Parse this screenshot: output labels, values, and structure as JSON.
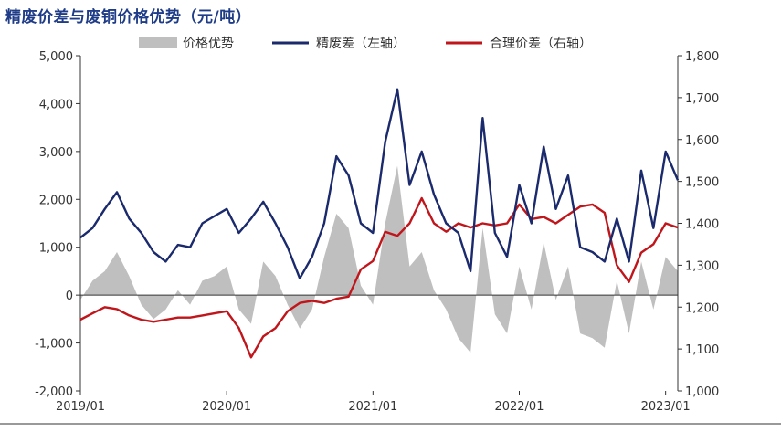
{
  "title": "精废价差与废铜价格优势（元/吨）",
  "chart_data": {
    "type": "line",
    "x_ticks": [
      "2019/01",
      "2020/01",
      "2021/01",
      "2022/01",
      "2023/01"
    ],
    "left_axis": {
      "ticks": [
        "5,000",
        "4,000",
        "3,000",
        "2,000",
        "1,000",
        "0",
        "-1,000",
        "-2,000"
      ],
      "min": -2000,
      "max": 5000
    },
    "right_axis": {
      "ticks": [
        "1,800",
        "1,700",
        "1,600",
        "1,500",
        "1,400",
        "1,300",
        "1,200",
        "1,100",
        "1,000"
      ],
      "min": 1000,
      "max": 1800
    },
    "legend": [
      "价格优势",
      "精废差（左轴）",
      "合理价差（右轴）"
    ],
    "colors": {
      "advantage": "#bfbfbf",
      "spread": "#1a2a6c",
      "reasonable": "#c0161b"
    },
    "series": [
      {
        "name": "精废差（左轴）",
        "axis": "left",
        "points": [
          [
            "2019/01",
            1200
          ],
          [
            "2019/02",
            1400
          ],
          [
            "2019/03",
            1800
          ],
          [
            "2019/04",
            2150
          ],
          [
            "2019/05",
            1600
          ],
          [
            "2019/06",
            1300
          ],
          [
            "2019/07",
            900
          ],
          [
            "2019/08",
            700
          ],
          [
            "2019/09",
            1050
          ],
          [
            "2019/10",
            1000
          ],
          [
            "2019/11",
            1500
          ],
          [
            "2019/12",
            1650
          ],
          [
            "2020/01",
            1800
          ],
          [
            "2020/02",
            1300
          ],
          [
            "2020/03",
            1600
          ],
          [
            "2020/04",
            1950
          ],
          [
            "2020/05",
            1500
          ],
          [
            "2020/06",
            1000
          ],
          [
            "2020/07",
            350
          ],
          [
            "2020/08",
            800
          ],
          [
            "2020/09",
            1500
          ],
          [
            "2020/10",
            2900
          ],
          [
            "2020/11",
            2500
          ],
          [
            "2020/12",
            1500
          ],
          [
            "2021/01",
            1300
          ],
          [
            "2021/02",
            3200
          ],
          [
            "2021/03",
            4300
          ],
          [
            "2021/04",
            2300
          ],
          [
            "2021/05",
            3000
          ],
          [
            "2021/06",
            2100
          ],
          [
            "2021/07",
            1500
          ],
          [
            "2021/08",
            1300
          ],
          [
            "2021/09",
            500
          ],
          [
            "2021/10",
            3700
          ],
          [
            "2021/11",
            1300
          ],
          [
            "2021/12",
            800
          ],
          [
            "2022/01",
            2300
          ],
          [
            "2022/02",
            1500
          ],
          [
            "2022/03",
            3100
          ],
          [
            "2022/04",
            1800
          ],
          [
            "2022/05",
            2500
          ],
          [
            "2022/06",
            1000
          ],
          [
            "2022/07",
            900
          ],
          [
            "2022/08",
            700
          ],
          [
            "2022/09",
            1600
          ],
          [
            "2022/10",
            700
          ],
          [
            "2022/11",
            2600
          ],
          [
            "2022/12",
            1400
          ],
          [
            "2023/01",
            3000
          ],
          [
            "2023/02",
            2400
          ]
        ]
      },
      {
        "name": "合理价差（右轴）",
        "axis": "right",
        "points": [
          [
            "2019/01",
            1170
          ],
          [
            "2019/02",
            1185
          ],
          [
            "2019/03",
            1200
          ],
          [
            "2019/04",
            1195
          ],
          [
            "2019/05",
            1180
          ],
          [
            "2019/06",
            1170
          ],
          [
            "2019/07",
            1165
          ],
          [
            "2019/08",
            1170
          ],
          [
            "2019/09",
            1175
          ],
          [
            "2019/10",
            1175
          ],
          [
            "2019/11",
            1180
          ],
          [
            "2019/12",
            1185
          ],
          [
            "2020/01",
            1190
          ],
          [
            "2020/02",
            1150
          ],
          [
            "2020/03",
            1080
          ],
          [
            "2020/04",
            1130
          ],
          [
            "2020/05",
            1150
          ],
          [
            "2020/06",
            1190
          ],
          [
            "2020/07",
            1210
          ],
          [
            "2020/08",
            1215
          ],
          [
            "2020/09",
            1210
          ],
          [
            "2020/10",
            1220
          ],
          [
            "2020/11",
            1225
          ],
          [
            "2020/12",
            1290
          ],
          [
            "2021/01",
            1310
          ],
          [
            "2021/02",
            1380
          ],
          [
            "2021/03",
            1370
          ],
          [
            "2021/04",
            1400
          ],
          [
            "2021/05",
            1460
          ],
          [
            "2021/06",
            1400
          ],
          [
            "2021/07",
            1380
          ],
          [
            "2021/08",
            1400
          ],
          [
            "2021/09",
            1390
          ],
          [
            "2021/10",
            1400
          ],
          [
            "2021/11",
            1395
          ],
          [
            "2021/12",
            1400
          ],
          [
            "2022/01",
            1445
          ],
          [
            "2022/02",
            1410
          ],
          [
            "2022/03",
            1415
          ],
          [
            "2022/04",
            1400
          ],
          [
            "2022/05",
            1420
          ],
          [
            "2022/06",
            1440
          ],
          [
            "2022/07",
            1445
          ],
          [
            "2022/08",
            1425
          ],
          [
            "2022/09",
            1300
          ],
          [
            "2022/10",
            1260
          ],
          [
            "2022/11",
            1330
          ],
          [
            "2022/12",
            1350
          ],
          [
            "2023/01",
            1400
          ],
          [
            "2023/02",
            1390
          ]
        ]
      },
      {
        "name": "价格优势",
        "axis": "left",
        "style": "area",
        "points": [
          [
            "2019/01",
            -100
          ],
          [
            "2019/02",
            300
          ],
          [
            "2019/03",
            500
          ],
          [
            "2019/04",
            900
          ],
          [
            "2019/05",
            400
          ],
          [
            "2019/06",
            -200
          ],
          [
            "2019/07",
            -500
          ],
          [
            "2019/08",
            -300
          ],
          [
            "2019/09",
            100
          ],
          [
            "2019/10",
            -200
          ],
          [
            "2019/11",
            300
          ],
          [
            "2019/12",
            400
          ],
          [
            "2020/01",
            600
          ],
          [
            "2020/02",
            -300
          ],
          [
            "2020/03",
            -600
          ],
          [
            "2020/04",
            700
          ],
          [
            "2020/05",
            400
          ],
          [
            "2020/06",
            -200
          ],
          [
            "2020/07",
            -700
          ],
          [
            "2020/08",
            -300
          ],
          [
            "2020/09",
            800
          ],
          [
            "2020/10",
            1700
          ],
          [
            "2020/11",
            1400
          ],
          [
            "2020/12",
            200
          ],
          [
            "2021/01",
            -200
          ],
          [
            "2021/02",
            1500
          ],
          [
            "2021/03",
            2700
          ],
          [
            "2021/04",
            600
          ],
          [
            "2021/05",
            900
          ],
          [
            "2021/06",
            100
          ],
          [
            "2021/07",
            -300
          ],
          [
            "2021/08",
            -900
          ],
          [
            "2021/09",
            -1200
          ],
          [
            "2021/10",
            1400
          ],
          [
            "2021/11",
            -400
          ],
          [
            "2021/12",
            -800
          ],
          [
            "2022/01",
            600
          ],
          [
            "2022/02",
            -300
          ],
          [
            "2022/03",
            1100
          ],
          [
            "2022/04",
            -100
          ],
          [
            "2022/05",
            600
          ],
          [
            "2022/06",
            -800
          ],
          [
            "2022/07",
            -900
          ],
          [
            "2022/08",
            -1100
          ],
          [
            "2022/09",
            300
          ],
          [
            "2022/10",
            -800
          ],
          [
            "2022/11",
            700
          ],
          [
            "2022/12",
            -300
          ],
          [
            "2023/01",
            800
          ],
          [
            "2023/02",
            500
          ]
        ]
      }
    ]
  }
}
